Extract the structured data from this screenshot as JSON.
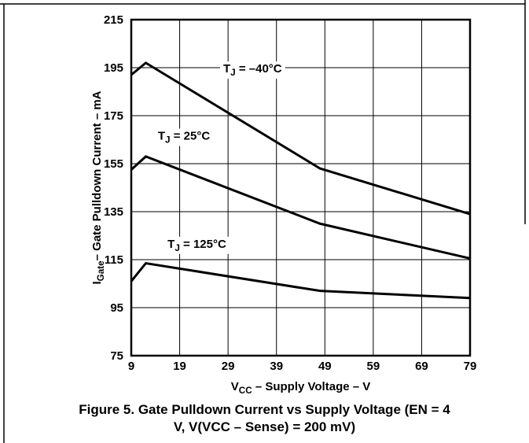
{
  "chart_data": {
    "type": "line",
    "x_label": [
      "V",
      "CC",
      " – Supply Voltage – V"
    ],
    "y_label": [
      "I",
      "Gate",
      "– Gate Pulldown Current – mA"
    ],
    "caption": [
      "Figure 5. Gate Pulldown Current vs Supply Voltage (EN = 4",
      "V, V(VCC – Sense) = 200 mV)"
    ],
    "x": [
      9,
      12,
      48,
      79
    ],
    "series": [
      {
        "color": "#000000",
        "values": [
          192,
          197,
          153,
          134
        ]
      },
      {
        "color": "#000000",
        "values": [
          152.5,
          158,
          130,
          115.5
        ]
      },
      {
        "color": "#000000",
        "values": [
          106,
          113.5,
          102,
          99
        ]
      }
    ],
    "annotations": [
      {
        "text": [
          "T",
          "J",
          " = –40°C"
        ],
        "x": 28,
        "y": 193
      },
      {
        "text": [
          "T",
          "J",
          " = 25°C"
        ],
        "x": 14.5,
        "y": 165
      },
      {
        "text": [
          "T",
          "J",
          " = 125°C"
        ],
        "x": 16.5,
        "y": 120
      }
    ],
    "xlim": [
      9,
      79
    ],
    "xticks": [
      9,
      19,
      29,
      39,
      49,
      59,
      69,
      79
    ],
    "ylim": [
      75,
      215
    ],
    "yticks": [
      75,
      95,
      115,
      135,
      155,
      175,
      195,
      215
    ],
    "grid": true
  }
}
